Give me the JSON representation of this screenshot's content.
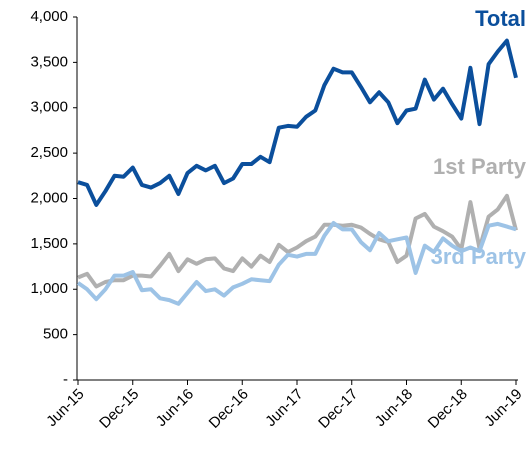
{
  "chart_data": {
    "type": "line",
    "categories": [
      "Jun-15",
      null,
      null,
      null,
      null,
      null,
      "Dec-15",
      null,
      null,
      null,
      null,
      null,
      "Jun-16",
      null,
      null,
      null,
      null,
      null,
      "Dec-16",
      null,
      null,
      null,
      null,
      null,
      "Jun-17",
      null,
      null,
      null,
      null,
      null,
      "Dec-17",
      null,
      null,
      null,
      null,
      null,
      "Jun-18",
      null,
      null,
      null,
      null,
      null,
      "Dec-18",
      null,
      null,
      null,
      null,
      null,
      "Jun-19"
    ],
    "series": [
      {
        "name": "Total",
        "color": "#0b4f9c",
        "values": [
          2180,
          2150,
          1930,
          2080,
          2250,
          2240,
          2340,
          2150,
          2120,
          2170,
          2250,
          2050,
          2280,
          2360,
          2310,
          2360,
          2170,
          2220,
          2380,
          2380,
          2460,
          2400,
          2780,
          2800,
          2790,
          2900,
          2970,
          3250,
          3430,
          3390,
          3390,
          3230,
          3060,
          3170,
          3060,
          2830,
          2970,
          2990,
          3310,
          3090,
          3210,
          3040,
          2880,
          3440,
          2820,
          3480,
          3620,
          3740,
          3330
        ]
      },
      {
        "name": "1st Party",
        "color": "#b0b0b0",
        "values": [
          1130,
          1170,
          1030,
          1080,
          1100,
          1100,
          1150,
          1150,
          1140,
          1260,
          1390,
          1200,
          1330,
          1280,
          1330,
          1340,
          1230,
          1200,
          1340,
          1250,
          1370,
          1300,
          1490,
          1410,
          1460,
          1530,
          1580,
          1710,
          1710,
          1700,
          1710,
          1680,
          1610,
          1550,
          1520,
          1300,
          1370,
          1780,
          1830,
          1690,
          1640,
          1580,
          1440,
          1960,
          1450,
          1800,
          1880,
          2030,
          1650
        ]
      },
      {
        "name": "3rd Party",
        "color": "#9dc3e6",
        "values": [
          1070,
          1000,
          890,
          1000,
          1150,
          1150,
          1190,
          990,
          1000,
          900,
          880,
          840,
          960,
          1080,
          980,
          1000,
          930,
          1020,
          1060,
          1110,
          1100,
          1090,
          1270,
          1380,
          1360,
          1390,
          1390,
          1590,
          1730,
          1660,
          1660,
          1520,
          1430,
          1620,
          1530,
          1550,
          1570,
          1180,
          1480,
          1410,
          1560,
          1480,
          1420,
          1460,
          1420,
          1700,
          1720,
          1690,
          1660
        ]
      }
    ],
    "ylim": [
      0,
      4000
    ],
    "yticks": [
      {
        "value": 0,
        "label": "-"
      },
      500,
      {
        "value": 1000,
        "label": "1,000"
      },
      {
        "value": 1500,
        "label": "1,500"
      },
      {
        "value": 2000,
        "label": "2,000"
      },
      {
        "value": 2500,
        "label": "2,500"
      },
      {
        "value": 3000,
        "label": "3,000"
      },
      {
        "value": 3500,
        "label": "3,500"
      },
      {
        "value": 4000,
        "label": "4,000"
      }
    ],
    "grid": false
  }
}
